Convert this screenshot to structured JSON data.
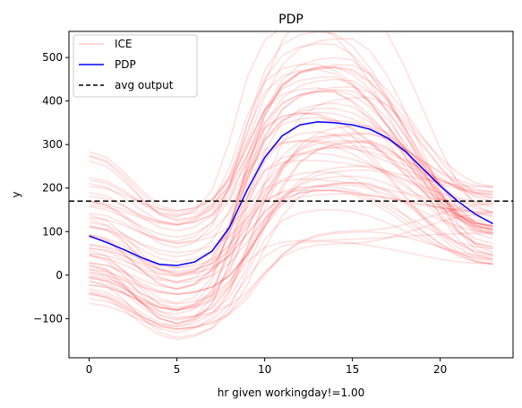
{
  "chart_data": {
    "type": "line",
    "title": "PDP",
    "xlabel": "hr given workingday!=1.00",
    "ylabel": "y",
    "xlim": [
      -1.15,
      24.15
    ],
    "ylim": [
      -190,
      560
    ],
    "xticks": [
      0,
      5,
      10,
      15,
      20
    ],
    "yticks": [
      -100,
      0,
      100,
      200,
      300,
      400,
      500
    ],
    "grid": false,
    "legend": {
      "placement": "top-left",
      "entries": [
        "ICE",
        "PDP",
        "avg output"
      ]
    },
    "colors": {
      "ice": "#ff0000",
      "pdp": "#0000ff",
      "avg": "#000000"
    },
    "x": [
      0,
      1,
      2,
      3,
      4,
      5,
      6,
      7,
      8,
      9,
      10,
      11,
      12,
      13,
      14,
      15,
      16,
      17,
      18,
      19,
      20,
      21,
      22,
      23
    ],
    "series": [
      {
        "name": "PDP",
        "values": [
          90,
          75,
          58,
          40,
          25,
          22,
          30,
          55,
          110,
          195,
          270,
          320,
          345,
          352,
          350,
          345,
          335,
          315,
          285,
          245,
          205,
          170,
          140,
          118
        ]
      },
      {
        "name": "avg output",
        "values": [
          170,
          170,
          170,
          170,
          170,
          170,
          170,
          170,
          170,
          170,
          170,
          170,
          170,
          170,
          170,
          170,
          170,
          170,
          170,
          170,
          170,
          170,
          170,
          170
        ]
      }
    ],
    "ice_summary": {
      "count": 60,
      "x_range": [
        0,
        23
      ],
      "y_at_0": [
        -40,
        200
      ],
      "min_near_x5": -160,
      "max_near_x14": 510,
      "y_at_23": [
        -15,
        240
      ]
    }
  }
}
